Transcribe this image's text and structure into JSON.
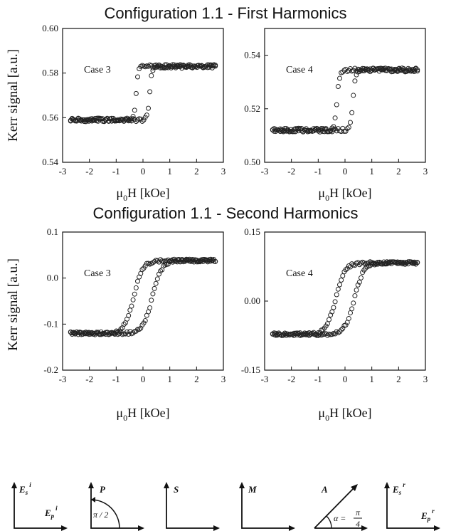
{
  "titles": {
    "first": "Configuration 1.1 - First Harmonics",
    "second": "Configuration 1.1 - Second Harmonics"
  },
  "shared_labels": {
    "ylabel": "Kerr signal [a.u.]",
    "xlabel_main": "μ",
    "xlabel_sub": "0",
    "xlabel_rest": "H [kOe]"
  },
  "chart_data": [
    {
      "id": "first-case3",
      "type": "scatter",
      "annotation": "Case 3",
      "xlim": [
        -3,
        3
      ],
      "ylim": [
        0.54,
        0.6
      ],
      "xticks": [
        -3,
        -2,
        -1,
        0,
        1,
        2,
        3
      ],
      "yticks": [
        0.54,
        0.56,
        0.58,
        0.6
      ],
      "ytick_labels": [
        "0.54",
        "0.56",
        "0.58",
        "0.60"
      ],
      "loop": {
        "xmin": -2.7,
        "xmax": 2.7,
        "low": 0.559,
        "high": 0.583,
        "coercive": 0.25,
        "width": 0.08,
        "noise": 0.0008
      }
    },
    {
      "id": "first-case4",
      "type": "scatter",
      "annotation": "Case 4",
      "xlim": [
        -3,
        3
      ],
      "ylim": [
        0.5,
        0.55
      ],
      "xticks": [
        -3,
        -2,
        -1,
        0,
        1,
        2,
        3
      ],
      "yticks": [
        0.5,
        0.52,
        0.54
      ],
      "ytick_labels": [
        "0.50",
        "0.52",
        "0.54"
      ],
      "loop": {
        "xmin": -2.7,
        "xmax": 2.7,
        "low": 0.512,
        "high": 0.5345,
        "coercive": 0.3,
        "width": 0.1,
        "noise": 0.0007
      }
    },
    {
      "id": "second-case3",
      "type": "scatter",
      "annotation": "Case 3",
      "xlim": [
        -3,
        3
      ],
      "ylim": [
        -0.2,
        0.1
      ],
      "xticks": [
        -3,
        -2,
        -1,
        0,
        1,
        2,
        3
      ],
      "yticks": [
        -0.2,
        -0.1,
        0.0,
        0.1
      ],
      "ytick_labels": [
        "-0.2",
        "-0.1",
        "0.0",
        "0.1"
      ],
      "loop": {
        "xmin": -2.7,
        "xmax": 2.7,
        "low": -0.12,
        "high": 0.038,
        "coercive": 0.35,
        "width": 0.35,
        "noise": 0.003
      }
    },
    {
      "id": "second-case4",
      "type": "scatter",
      "annotation": "Case 4",
      "xlim": [
        -3,
        3
      ],
      "ylim": [
        -0.15,
        0.15
      ],
      "xticks": [
        -3,
        -2,
        -1,
        0,
        1,
        2,
        3
      ],
      "yticks": [
        -0.15,
        0.0,
        0.15
      ],
      "ytick_labels": [
        "-0.15",
        "0.00",
        "0.15"
      ],
      "loop": {
        "xmin": -2.7,
        "xmax": 2.7,
        "low": -0.072,
        "high": 0.083,
        "coercive": 0.35,
        "width": 0.35,
        "noise": 0.003
      }
    }
  ],
  "diagram": {
    "panels": [
      {
        "id": "es-ep-incident",
        "v_label": "E",
        "v_sub": "s",
        "v_sup": "i",
        "h_label": "E",
        "h_sub": "p",
        "h_sup": "i"
      },
      {
        "id": "p",
        "v_label": "P",
        "note": "π / 2"
      },
      {
        "id": "s",
        "v_label": "S"
      },
      {
        "id": "m",
        "v_label": "M"
      },
      {
        "id": "a",
        "v_label": "A",
        "note_prefix": "α = ",
        "note_num": "π",
        "note_den": "4"
      },
      {
        "id": "es-ep-reflected",
        "v_label": "E",
        "v_sub": "s",
        "v_sup": "r",
        "h_label": "E",
        "h_sub": "p",
        "h_sup": "r"
      }
    ]
  }
}
